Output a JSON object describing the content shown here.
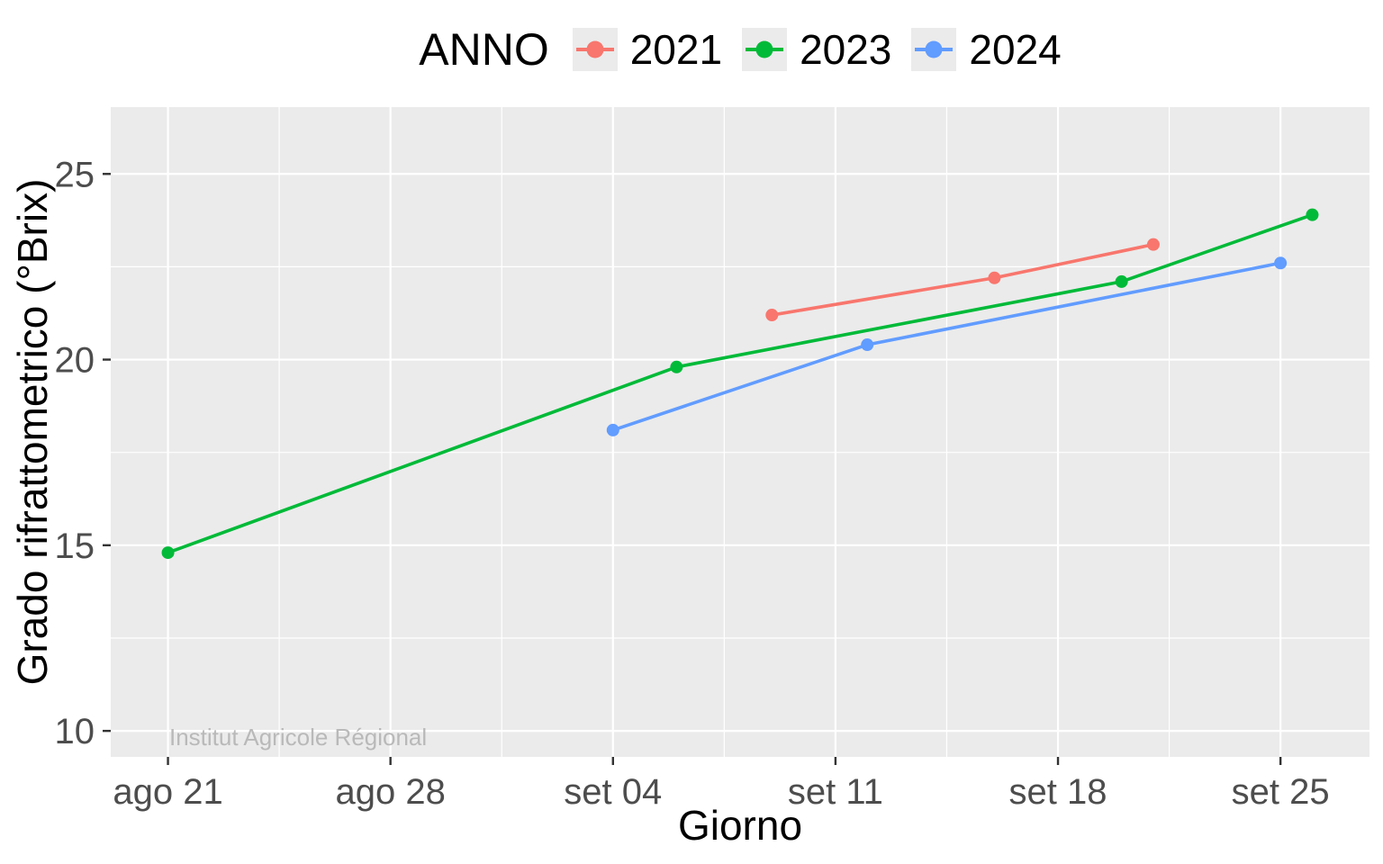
{
  "legend": {
    "title": "ANNO"
  },
  "chart_data": {
    "type": "line",
    "title": "",
    "xlabel": "Giorno",
    "ylabel": "Grado rifrattometrico (°Brix)",
    "watermark": "Institut Agricole Régional",
    "legend_title": "ANNO",
    "legend_position": "top",
    "grid": true,
    "x_axis": {
      "unit": "date (day offset from ago 21)",
      "domain_days": [
        -1.8,
        37.8
      ],
      "major_ticks": [
        {
          "day": 0,
          "label": "ago 21"
        },
        {
          "day": 7,
          "label": "ago 28"
        },
        {
          "day": 14,
          "label": "set 04"
        },
        {
          "day": 21,
          "label": "set 11"
        },
        {
          "day": 28,
          "label": "set 18"
        },
        {
          "day": 35,
          "label": "set 25"
        }
      ],
      "minor_ticks_days": [
        3.5,
        10.5,
        17.5,
        24.5,
        31.5
      ]
    },
    "y_axis": {
      "domain": [
        9.3,
        26.8
      ],
      "major_ticks": [
        10,
        15,
        20,
        25
      ],
      "minor_ticks": [
        12.5,
        17.5,
        22.5
      ]
    },
    "series": [
      {
        "name": "2021",
        "color": "#F8766D",
        "points": [
          {
            "date": "set 09",
            "day": 19,
            "brix": 21.2
          },
          {
            "date": "set 16",
            "day": 26,
            "brix": 22.2
          },
          {
            "date": "set 21",
            "day": 31,
            "brix": 23.1
          }
        ]
      },
      {
        "name": "2023",
        "color": "#00BA38",
        "points": [
          {
            "date": "ago 21",
            "day": 0,
            "brix": 14.8
          },
          {
            "date": "set 06",
            "day": 16,
            "brix": 19.8
          },
          {
            "date": "set 20",
            "day": 30,
            "brix": 22.1
          },
          {
            "date": "set 26",
            "day": 36,
            "brix": 23.9
          }
        ]
      },
      {
        "name": "2024",
        "color": "#619CFF",
        "points": [
          {
            "date": "set 04",
            "day": 14,
            "brix": 18.1
          },
          {
            "date": "set 12",
            "day": 22,
            "brix": 20.4
          },
          {
            "date": "set 25",
            "day": 35,
            "brix": 22.6
          }
        ]
      }
    ],
    "style": {
      "panel_bg": "#EBEBEB",
      "grid_color": "#FFFFFF",
      "tick_mark_color": "#333333",
      "tick_label_color": "#4D4D4D",
      "axis_title_color": "#000000",
      "watermark_color": "#B9B9B9",
      "legend_key_bg": "#EBEBEB"
    }
  }
}
